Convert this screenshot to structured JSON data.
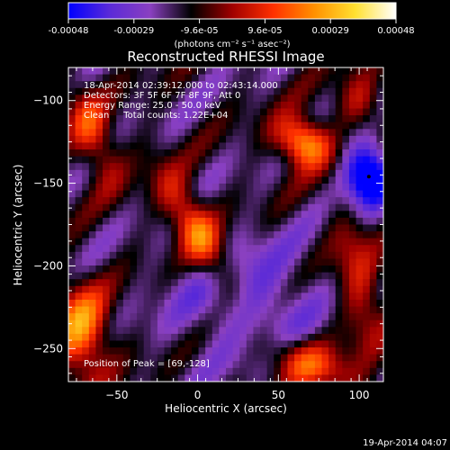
{
  "chart_data": {
    "type": "heatmap",
    "title": "Reconstructed RHESSI Image",
    "xlabel": "Heliocentric X (arcsec)",
    "ylabel": "Heliocentric Y (arcsec)",
    "xlim": [
      -80,
      115
    ],
    "ylim": [
      -270,
      -80
    ],
    "x_ticks": [
      -50,
      0,
      50,
      100
    ],
    "y_ticks": [
      -250,
      -200,
      -150,
      -100
    ],
    "colorbar": {
      "min": -0.00048,
      "max": 0.00048,
      "tick_labels": [
        "-0.00048",
        "-0.00029",
        "-9.6e-05",
        "9.6e-05",
        "0.00029",
        "0.00048"
      ],
      "unit_label": "(photons cm⁻² s⁻¹ asec⁻²)",
      "colors": [
        "#0000ff",
        "#5a2ad8",
        "#8a40c0",
        "#000000",
        "#a00000",
        "#ff3000",
        "#ff9000",
        "#ffe030",
        "#ffffff"
      ]
    },
    "annotations": {
      "time_range": "18-Apr-2014 02:39:12.000 to 02:43:14.000",
      "detectors": "Detectors: 3F 5F 6F 7F 8F 9F, Att 0",
      "energy": "Energy Range: 25.0 - 50.0 keV",
      "clean": "Clean     Total counts: 1.22E+04",
      "peak": "Position of Peak = [69,-128]"
    },
    "timestamp": "19-Apr-2014 04:07",
    "grid": false,
    "peak_position": [
      69,
      -128
    ],
    "sources": [
      {
        "x": 65,
        "y": -125,
        "sx": 12,
        "sy": 10,
        "amp": 0.00046,
        "angle": -30
      },
      {
        "x": 0,
        "y": -180,
        "sx": 9,
        "sy": 28,
        "amp": 0.00036,
        "angle": 30
      },
      {
        "x": -72,
        "y": -240,
        "sx": 12,
        "sy": 20,
        "amp": 0.0004,
        "angle": 0
      },
      {
        "x": -65,
        "y": -120,
        "sx": 9,
        "sy": 22,
        "amp": 0.00026,
        "angle": 20
      },
      {
        "x": 70,
        "y": -260,
        "sx": 22,
        "sy": 10,
        "amp": 0.00028,
        "angle": -20
      },
      {
        "x": 100,
        "y": -210,
        "sx": 10,
        "sy": 30,
        "amp": 0.00022,
        "angle": 10
      },
      {
        "x": 100,
        "y": -100,
        "sx": 10,
        "sy": 12,
        "amp": 0.0002,
        "angle": 0
      },
      {
        "x": 105,
        "y": -145,
        "sx": 10,
        "sy": 14,
        "amp": -0.00046,
        "angle": 0
      },
      {
        "x": 30,
        "y": -220,
        "sx": 30,
        "sy": 25,
        "amp": -0.00018,
        "angle": 0
      }
    ]
  }
}
